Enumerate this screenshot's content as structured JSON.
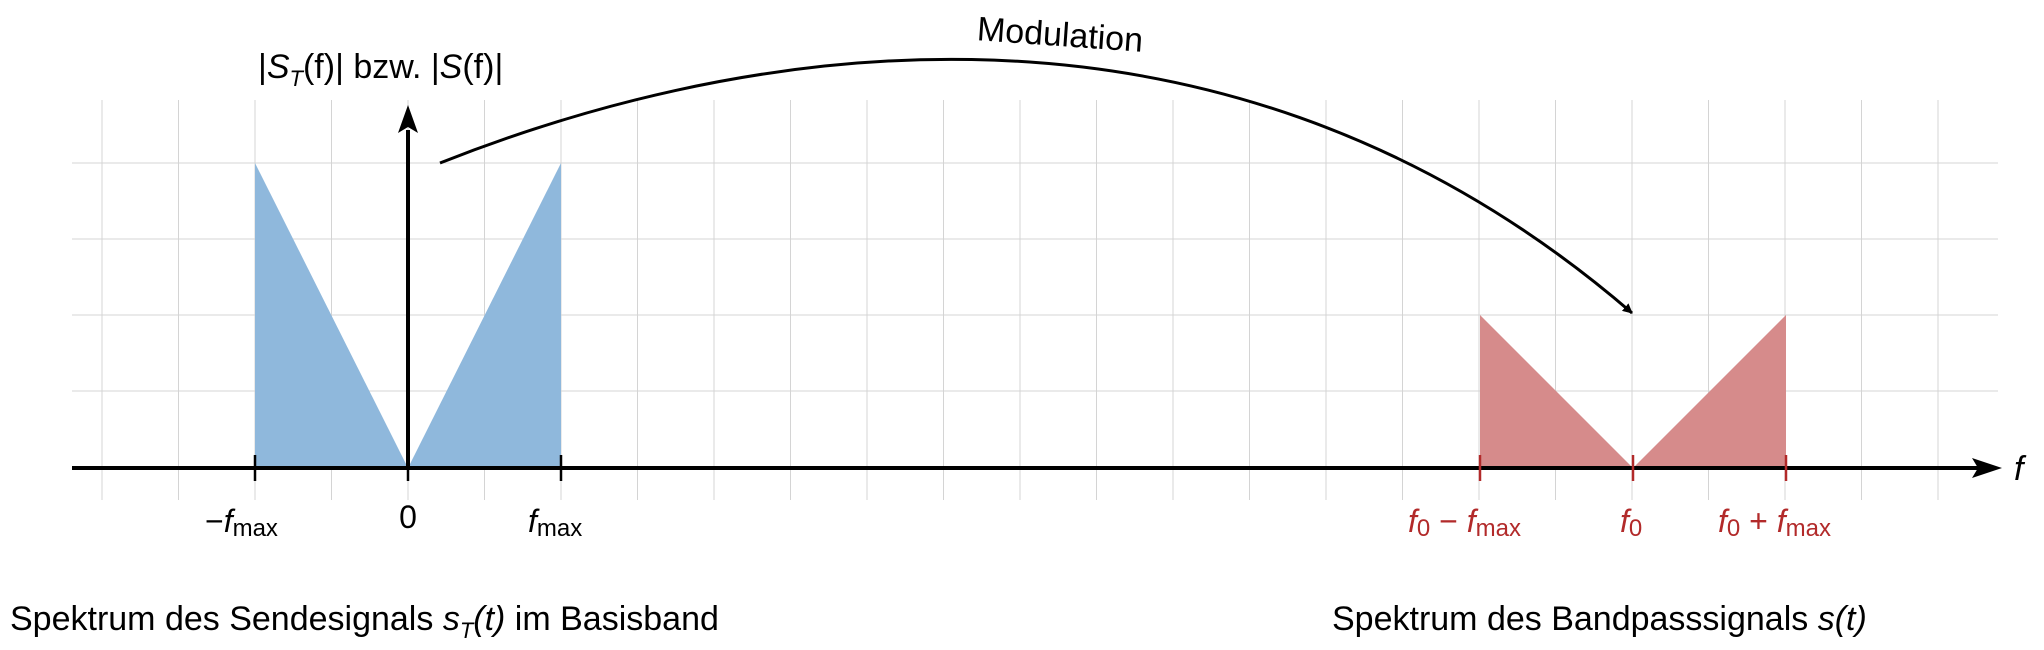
{
  "diagram": {
    "y_axis": {
      "label_open": "|",
      "label_S": "S",
      "label_sub_T": "T",
      "label_mid": "(f)| bzw. |",
      "label_S2": "S",
      "label_end": "(f)|"
    },
    "x_axis": {
      "label": "f"
    },
    "grid": true,
    "arrow_label": "Modulation",
    "baseband": {
      "color": "#8fb8dc",
      "tick_neg_minus": "−",
      "tick_neg_f": "f",
      "tick_neg_sub": "max",
      "tick_zero": "0",
      "tick_pos_f": "f",
      "tick_pos_sub": "max",
      "caption_pre": "Spektrum des Sendesignals ",
      "caption_s": "s",
      "caption_sub": "T",
      "caption_arg": "(t)",
      "caption_post": " im Basisband"
    },
    "bandpass": {
      "color": "#d68b8b",
      "label_color": "#b22a2a",
      "tick_left_f0": "f",
      "tick_left_0": "0",
      "tick_left_op": " − ",
      "tick_left_f": "f",
      "tick_left_sub": "max",
      "tick_center_f": "f",
      "tick_center_0": "0",
      "tick_right_f0": "f",
      "tick_right_0": "0",
      "tick_right_op": " + ",
      "tick_right_f": "f",
      "tick_right_sub": "max",
      "caption_pre": "Spektrum des Bandpasssignals ",
      "caption_s": "s",
      "caption_arg": "(t)"
    }
  }
}
